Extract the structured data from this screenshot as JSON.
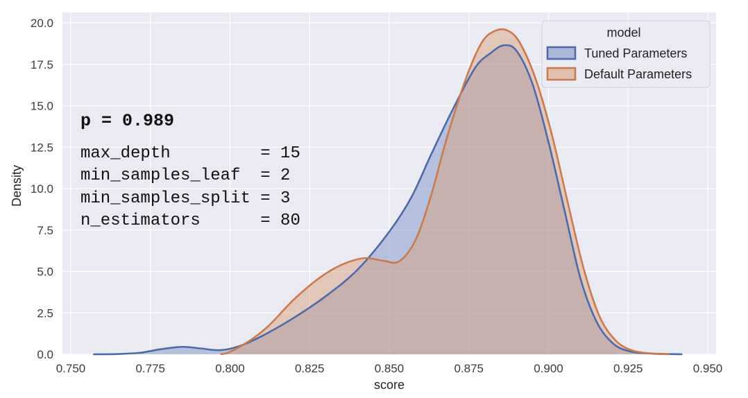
{
  "chart_data": {
    "type": "area",
    "xlabel": "score",
    "ylabel": "Density",
    "xlim": [
      0.75,
      0.95
    ],
    "ylim": [
      0,
      20
    ],
    "x_ticks": [
      "0.750",
      "0.775",
      "0.800",
      "0.825",
      "0.850",
      "0.875",
      "0.900",
      "0.925",
      "0.950"
    ],
    "y_ticks": [
      "0.0",
      "2.5",
      "5.0",
      "7.5",
      "10.0",
      "12.5",
      "15.0",
      "17.5",
      "20.0"
    ],
    "grid": true,
    "legend": {
      "title": "model",
      "placement": "top-right",
      "entries": [
        "Tuned Parameters",
        "Default Parameters"
      ]
    },
    "annotation": {
      "p_text": "p = 0.989",
      "lines": [
        "max_depth         = 15",
        "min_samples_leaf  = 2",
        "min_samples_split = 3",
        "n_estimators      = 80"
      ]
    },
    "series": [
      {
        "name": "Tuned Parameters",
        "line_color": "#4c6aa8",
        "fill_color": "#7e95c8",
        "points": [
          [
            0.757,
            0.0
          ],
          [
            0.765,
            0.02
          ],
          [
            0.772,
            0.1
          ],
          [
            0.778,
            0.3
          ],
          [
            0.785,
            0.45
          ],
          [
            0.791,
            0.35
          ],
          [
            0.797,
            0.25
          ],
          [
            0.803,
            0.5
          ],
          [
            0.81,
            1.1
          ],
          [
            0.82,
            2.2
          ],
          [
            0.83,
            3.5
          ],
          [
            0.84,
            5.1
          ],
          [
            0.85,
            7.4
          ],
          [
            0.857,
            9.5
          ],
          [
            0.863,
            12.0
          ],
          [
            0.87,
            14.8
          ],
          [
            0.877,
            17.3
          ],
          [
            0.882,
            18.2
          ],
          [
            0.886,
            18.65
          ],
          [
            0.89,
            18.3
          ],
          [
            0.895,
            16.3
          ],
          [
            0.9,
            12.8
          ],
          [
            0.905,
            8.7
          ],
          [
            0.91,
            4.6
          ],
          [
            0.915,
            2.0
          ],
          [
            0.92,
            0.7
          ],
          [
            0.925,
            0.2
          ],
          [
            0.932,
            0.05
          ],
          [
            0.942,
            0.0
          ]
        ]
      },
      {
        "name": "Default Parameters",
        "line_color": "#c97b4d",
        "fill_color": "#d9a181",
        "points": [
          [
            0.797,
            0.0
          ],
          [
            0.8,
            0.15
          ],
          [
            0.806,
            0.8
          ],
          [
            0.812,
            1.7
          ],
          [
            0.82,
            3.3
          ],
          [
            0.828,
            4.6
          ],
          [
            0.835,
            5.4
          ],
          [
            0.842,
            5.8
          ],
          [
            0.848,
            5.65
          ],
          [
            0.853,
            5.6
          ],
          [
            0.858,
            6.8
          ],
          [
            0.863,
            9.5
          ],
          [
            0.868,
            13.0
          ],
          [
            0.874,
            16.6
          ],
          [
            0.879,
            18.8
          ],
          [
            0.883,
            19.5
          ],
          [
            0.887,
            19.55
          ],
          [
            0.891,
            18.8
          ],
          [
            0.896,
            16.6
          ],
          [
            0.901,
            13.3
          ],
          [
            0.906,
            9.2
          ],
          [
            0.911,
            5.2
          ],
          [
            0.916,
            2.3
          ],
          [
            0.921,
            0.85
          ],
          [
            0.926,
            0.25
          ],
          [
            0.932,
            0.05
          ],
          [
            0.938,
            0.0
          ]
        ]
      }
    ]
  }
}
